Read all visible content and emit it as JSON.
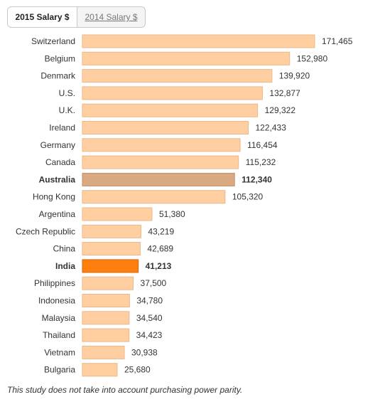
{
  "tabs": [
    {
      "label": "2015 Salary $",
      "active": true
    },
    {
      "label": "2014 Salary $",
      "active": false
    }
  ],
  "footnote": "This study does not take into account purchasing power parity.",
  "colors": {
    "bar": "#ffcfa1",
    "bar_stroke": "#e8b88a",
    "highlight_australia": "#d9a982",
    "highlight_india": "#ff7f0e"
  },
  "chart_data": {
    "type": "bar",
    "orientation": "horizontal",
    "categories": [
      "Switzerland",
      "Belgium",
      "Denmark",
      "U.S.",
      "U.K.",
      "Ireland",
      "Germany",
      "Canada",
      "Australia",
      "Hong Kong",
      "Argentina",
      "Czech Republic",
      "China",
      "India",
      "Philippines",
      "Indonesia",
      "Malaysia",
      "Thailand",
      "Vietnam",
      "Bulgaria"
    ],
    "values": [
      171465,
      152980,
      139920,
      132877,
      129322,
      122433,
      116454,
      115232,
      112340,
      105320,
      51380,
      43219,
      42689,
      41213,
      37500,
      34780,
      34540,
      34423,
      30938,
      25680
    ],
    "value_labels": [
      "171,465",
      "152,980",
      "139,920",
      "132,877",
      "129,322",
      "122,433",
      "116,454",
      "115,232",
      "112,340",
      "105,320",
      "51,380",
      "43,219",
      "42,689",
      "41,213",
      "37,500",
      "34,780",
      "34,540",
      "34,423",
      "30,938",
      "25,680"
    ],
    "highlighted": [
      "Australia",
      "India"
    ],
    "title": "",
    "xlabel": "",
    "ylabel": "",
    "grid": false,
    "legend": "none"
  }
}
